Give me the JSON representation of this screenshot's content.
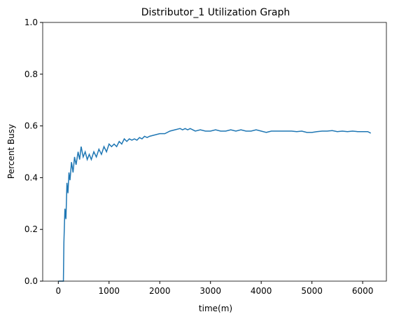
{
  "chart_data": {
    "type": "line",
    "title": "Distributor_1 Utilization Graph",
    "x_label": "time(m)",
    "y_label": "Percent Busy",
    "series": [
      {
        "color": "#1f77b4",
        "x": [
          0,
          50,
          100,
          110,
          130,
          150,
          170,
          190,
          210,
          230,
          260,
          290,
          320,
          350,
          390,
          420,
          450,
          490,
          530,
          570,
          610,
          650,
          700,
          750,
          800,
          850,
          900,
          950,
          1000,
          1050,
          1100,
          1150,
          1200,
          1250,
          1300,
          1350,
          1400,
          1450,
          1500,
          1550,
          1600,
          1650,
          1700,
          1750,
          1800,
          1900,
          2000,
          2100,
          2200,
          2300,
          2400,
          2450,
          2500,
          2550,
          2600,
          2700,
          2800,
          2900,
          3000,
          3100,
          3200,
          3300,
          3400,
          3500,
          3600,
          3700,
          3800,
          3900,
          4000,
          4100,
          4200,
          4300,
          4400,
          4500,
          4600,
          4700,
          4800,
          4900,
          5000,
          5100,
          5200,
          5300,
          5400,
          5500,
          5600,
          5700,
          5800,
          5900,
          6000,
          6100,
          6160
        ],
        "values": [
          0,
          0,
          0,
          0.15,
          0.28,
          0.24,
          0.38,
          0.34,
          0.42,
          0.39,
          0.46,
          0.42,
          0.48,
          0.45,
          0.5,
          0.47,
          0.52,
          0.48,
          0.5,
          0.47,
          0.49,
          0.47,
          0.5,
          0.48,
          0.51,
          0.49,
          0.52,
          0.5,
          0.53,
          0.52,
          0.53,
          0.52,
          0.54,
          0.53,
          0.55,
          0.54,
          0.55,
          0.545,
          0.55,
          0.545,
          0.555,
          0.55,
          0.56,
          0.555,
          0.56,
          0.565,
          0.57,
          0.57,
          0.58,
          0.585,
          0.59,
          0.585,
          0.59,
          0.585,
          0.59,
          0.58,
          0.585,
          0.58,
          0.58,
          0.585,
          0.58,
          0.58,
          0.585,
          0.58,
          0.585,
          0.58,
          0.58,
          0.585,
          0.58,
          0.575,
          0.58,
          0.58,
          0.58,
          0.58,
          0.58,
          0.578,
          0.58,
          0.575,
          0.575,
          0.578,
          0.58,
          0.58,
          0.582,
          0.578,
          0.58,
          0.578,
          0.58,
          0.578,
          0.578,
          0.578,
          0.572
        ]
      }
    ],
    "xlim": [
      -308,
      6468
    ],
    "xticks": [
      0,
      1000,
      2000,
      3000,
      4000,
      5000,
      6000
    ],
    "ylim": [
      0,
      1
    ],
    "yticks": [
      {
        "value": 0,
        "label": "0.0"
      },
      {
        "value": 0.2,
        "label": "0.2"
      },
      {
        "value": 0.4,
        "label": "0.4"
      },
      {
        "value": 0.6,
        "label": "0.6"
      },
      {
        "value": 0.8,
        "label": "0.8"
      },
      {
        "value": 1,
        "label": "1.0"
      }
    ],
    "grid": false
  }
}
